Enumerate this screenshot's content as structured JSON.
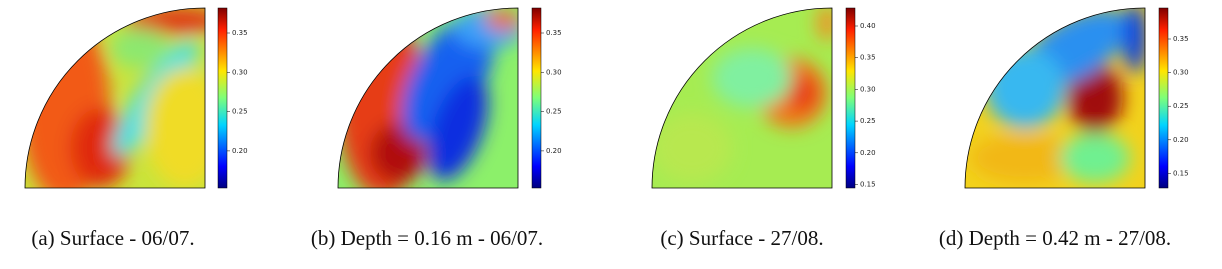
{
  "panels": [
    {
      "caption": "(a) Surface - 06/07.",
      "colorbar_ticks": [
        "0.35",
        "0.30",
        "0.25",
        "0.20"
      ]
    },
    {
      "caption": "(b) Depth = 0.16 m - 06/07.",
      "colorbar_ticks": [
        "0.35",
        "0.30",
        "0.25",
        "0.20"
      ]
    },
    {
      "caption": "(c) Surface - 27/08.",
      "colorbar_ticks": [
        "0.40",
        "0.35",
        "0.30",
        "0.25",
        "0.20",
        "0.15"
      ]
    },
    {
      "caption": "(d) Depth = 0.42 m - 27/08.",
      "colorbar_ticks": [
        "0.35",
        "0.30",
        "0.25",
        "0.20",
        "0.15"
      ]
    }
  ]
}
